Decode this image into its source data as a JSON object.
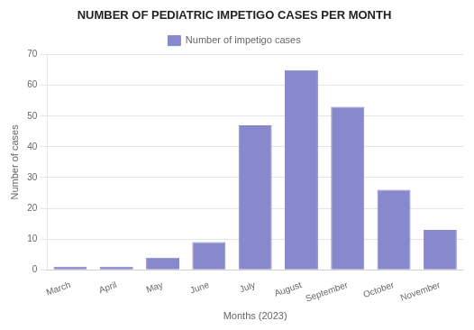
{
  "chart_data": {
    "type": "bar",
    "title": "NUMBER OF PEDIATRIC IMPETIGO CASES PER MONTH",
    "xlabel": "Months (2023)",
    "ylabel": "Number of cases",
    "categories": [
      "March",
      "April",
      "May",
      "June",
      "July",
      "August",
      "September",
      "October",
      "November"
    ],
    "series": [
      {
        "name": "Number of impetigo cases",
        "color": "#8888cc",
        "values": [
          1,
          1,
          4,
          9,
          47,
          65,
          53,
          26,
          13
        ]
      }
    ],
    "ylim": [
      0,
      70
    ],
    "yticks": [
      0,
      10,
      20,
      30,
      40,
      50,
      60,
      70
    ],
    "grid": true,
    "legend": "top"
  }
}
